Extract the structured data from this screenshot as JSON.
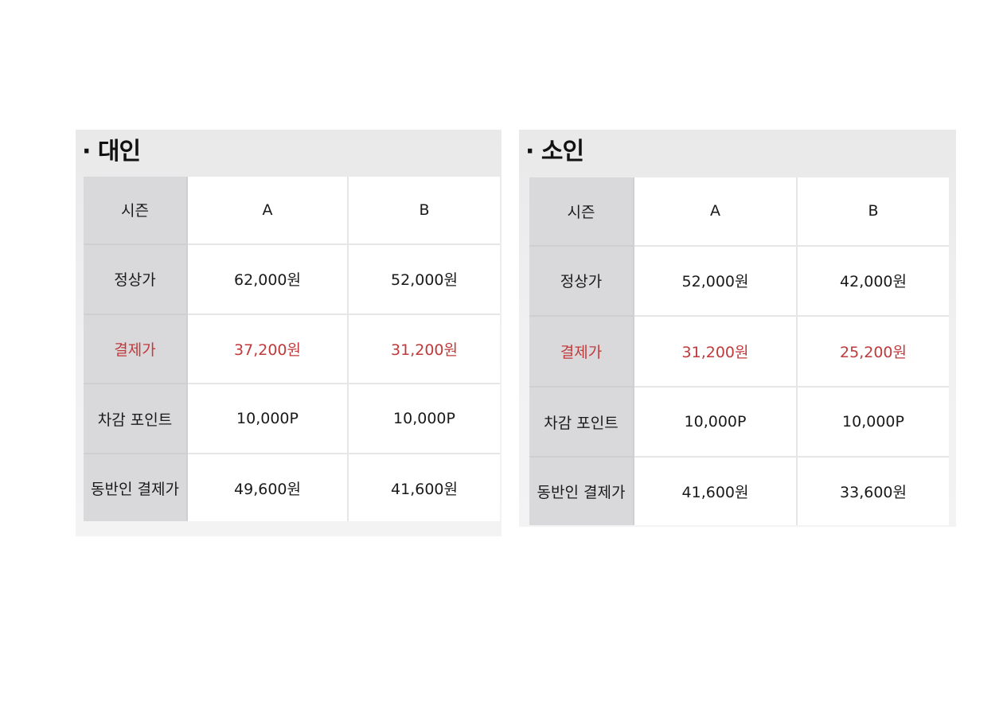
{
  "accent_color": "#c0393b",
  "tables": [
    {
      "title": "· 대인",
      "header": {
        "label": "시즌",
        "cols": [
          "A",
          "B"
        ]
      },
      "rows": [
        {
          "label": "정상가",
          "values": [
            "62,000원",
            "52,000원"
          ],
          "highlight": false
        },
        {
          "label": "결제가",
          "values": [
            "37,200원",
            "31,200원"
          ],
          "highlight": true
        },
        {
          "label": "차감 포인트",
          "values": [
            "10,000P",
            "10,000P"
          ],
          "highlight": false
        },
        {
          "label": "동반인 결제가",
          "values": [
            "49,600원",
            "41,600원"
          ],
          "highlight": false
        }
      ]
    },
    {
      "title": "· 소인",
      "header": {
        "label": "시즌",
        "cols": [
          "A",
          "B"
        ]
      },
      "rows": [
        {
          "label": "정상가",
          "values": [
            "52,000원",
            "42,000원"
          ],
          "highlight": false
        },
        {
          "label": "결제가",
          "values": [
            "31,200원",
            "25,200원"
          ],
          "highlight": true
        },
        {
          "label": "차감 포인트",
          "values": [
            "10,000P",
            "10,000P"
          ],
          "highlight": false
        },
        {
          "label": "동반인 결제가",
          "values": [
            "41,600원",
            "33,600원"
          ],
          "highlight": false
        }
      ]
    }
  ]
}
